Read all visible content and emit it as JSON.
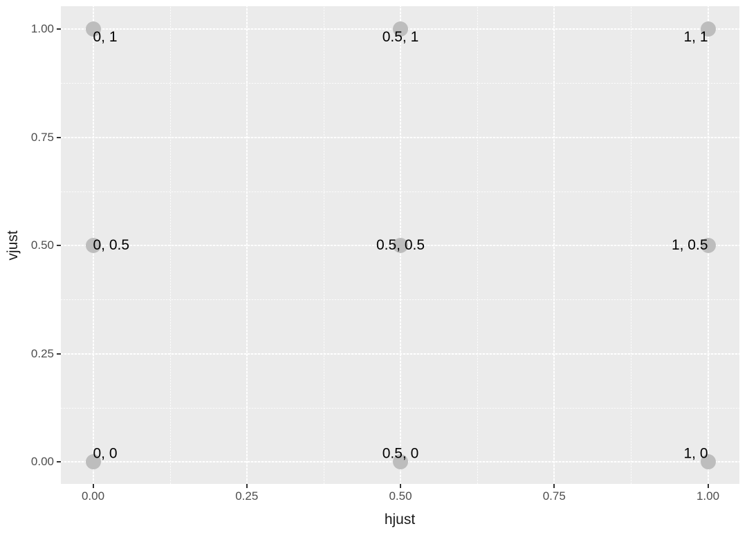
{
  "chart_data": {
    "type": "scatter",
    "title": "",
    "xlabel": "hjust",
    "ylabel": "vjust",
    "xlim": [
      -0.05,
      1.05
    ],
    "ylim": [
      -0.05,
      1.05
    ],
    "grid": "major+minor white on gray panel",
    "legend": "none",
    "x_ticks": {
      "values": [
        0,
        0.25,
        0.5,
        0.75,
        1
      ],
      "labels": [
        "0.00",
        "0.25",
        "0.50",
        "0.75",
        "1.00"
      ]
    },
    "y_ticks": {
      "values": [
        0,
        0.25,
        0.5,
        0.75,
        1
      ],
      "labels": [
        "0.00",
        "0.25",
        "0.50",
        "0.75",
        "1.00"
      ]
    },
    "minor_ticks": [
      0.125,
      0.375,
      0.625,
      0.875
    ],
    "points": [
      {
        "x": 0,
        "y": 1,
        "hjust": 0,
        "vjust": 1,
        "label": "0, 1"
      },
      {
        "x": 0.5,
        "y": 1,
        "hjust": 0.5,
        "vjust": 1,
        "label": "0.5, 1"
      },
      {
        "x": 1,
        "y": 1,
        "hjust": 1,
        "vjust": 1,
        "label": "1, 1"
      },
      {
        "x": 0,
        "y": 0.5,
        "hjust": 0,
        "vjust": 0.5,
        "label": "0, 0.5"
      },
      {
        "x": 0.5,
        "y": 0.5,
        "hjust": 0.5,
        "vjust": 0.5,
        "label": "0.5, 0.5"
      },
      {
        "x": 1,
        "y": 0.5,
        "hjust": 1,
        "vjust": 0.5,
        "label": "1, 0.5"
      },
      {
        "x": 0,
        "y": 0,
        "hjust": 0,
        "vjust": 0,
        "label": "0, 0"
      },
      {
        "x": 0.5,
        "y": 0,
        "hjust": 0.5,
        "vjust": 0,
        "label": "0.5, 0"
      },
      {
        "x": 1,
        "y": 0,
        "hjust": 1,
        "vjust": 0,
        "label": "1, 0"
      }
    ],
    "colors": {
      "panel_background": "#EBEBEB",
      "gridline": "#FFFFFF",
      "point_fill": "#BDBDBD",
      "point_label_text": "#000000",
      "tick_mark": "#333333",
      "tick_label_text": "#4D4D4D",
      "axis_title_text": "#1A1A1A",
      "figure_background": "#FFFFFF"
    }
  }
}
